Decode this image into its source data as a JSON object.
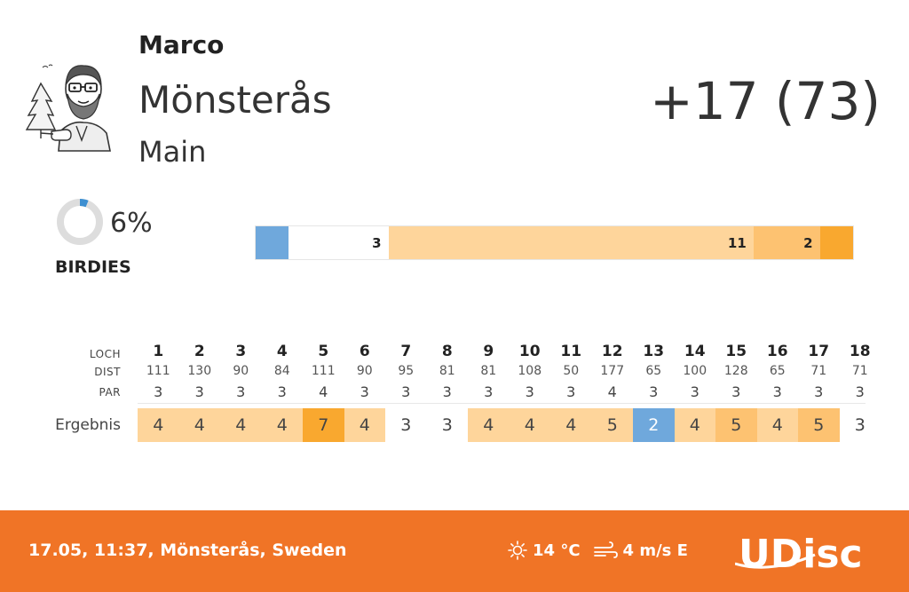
{
  "header": {
    "player": "Marco",
    "course": "Mönsterås",
    "layout": "Main",
    "total": "+17 (73)"
  },
  "birdies": {
    "percent_text": "6%",
    "percent": 6,
    "label": "BIRDIES"
  },
  "distribution": {
    "segments": [
      {
        "name": "birdie",
        "count": 1,
        "label": "",
        "color": "#6fa8dc"
      },
      {
        "name": "par",
        "count": 3,
        "label": "3",
        "color": "#ffffff"
      },
      {
        "name": "bogey",
        "count": 11,
        "label": "11",
        "color": "#fed59b"
      },
      {
        "name": "double-bogey",
        "count": 2,
        "label": "2",
        "color": "#fdc271"
      },
      {
        "name": "triple-bogey-plus",
        "count": 1,
        "label": "",
        "color": "#f9a82f"
      }
    ]
  },
  "scorecard": {
    "hole_label": "LOCH",
    "dist_label": "DIST",
    "par_label": "PAR",
    "result_label": "Ergebnis",
    "holes": [
      "1",
      "2",
      "3",
      "4",
      "5",
      "6",
      "7",
      "8",
      "9",
      "10",
      "11",
      "12",
      "13",
      "14",
      "15",
      "16",
      "17",
      "18"
    ],
    "dist": [
      "111",
      "130",
      "90",
      "84",
      "111",
      "90",
      "95",
      "81",
      "81",
      "108",
      "50",
      "177",
      "65",
      "100",
      "128",
      "65",
      "71",
      "71"
    ],
    "par": [
      "3",
      "3",
      "3",
      "3",
      "4",
      "3",
      "3",
      "3",
      "3",
      "3",
      "3",
      "4",
      "3",
      "3",
      "3",
      "3",
      "3",
      "3"
    ],
    "result": [
      "4",
      "4",
      "4",
      "4",
      "7",
      "4",
      "3",
      "3",
      "4",
      "4",
      "4",
      "5",
      "2",
      "4",
      "5",
      "4",
      "5",
      "3"
    ]
  },
  "colors": {
    "birdie": "#6fa8dc",
    "bogey": "#fed59b",
    "double_bogey": "#fdc271",
    "triple_plus": "#f9a82f",
    "footer": "#f07426",
    "donut_track": "#dddddd",
    "donut_fill": "#3d8fd1"
  },
  "footer": {
    "info": "17.05, 11:37, Mönsterås, Sweden",
    "temperature": "14 °C",
    "wind": "4 m/s E",
    "temp_icon": "sun-icon",
    "wind_icon": "wind-icon",
    "brand": "UDisc"
  }
}
